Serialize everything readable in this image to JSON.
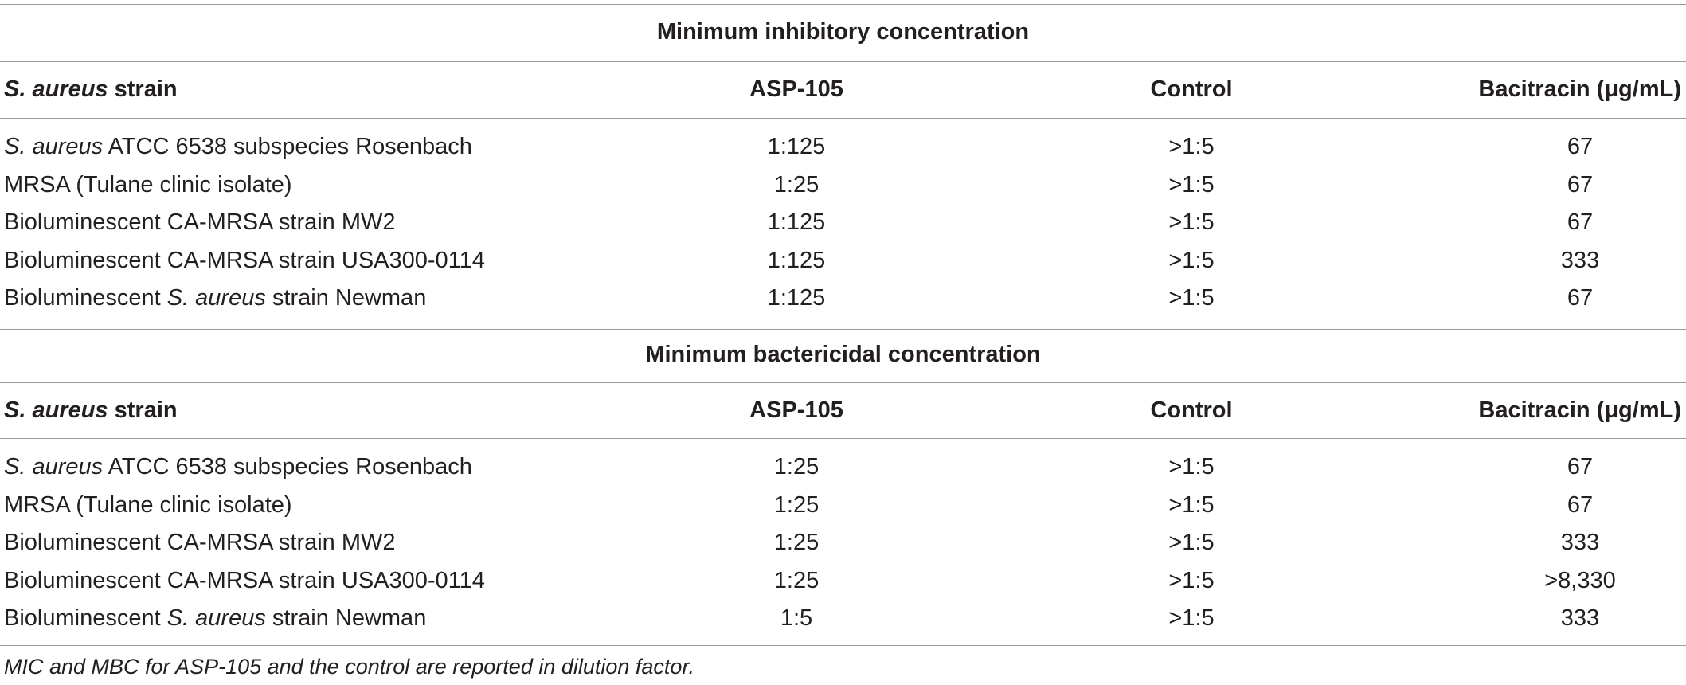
{
  "sections": [
    {
      "title": "Minimum inhibitory concentration",
      "header": {
        "strain_italic": "S. aureus",
        "strain_rest": " strain",
        "asp": "ASP-105",
        "control": "Control",
        "bacitracin": "Bacitracin (μg/mL)"
      },
      "rows": [
        {
          "strain_italic": "S. aureus",
          "strain_rest": " ATCC 6538 subspecies Rosenbach",
          "asp": "1:125",
          "control": ">1:5",
          "bacitracin": "67"
        },
        {
          "strain_italic": "",
          "strain_rest": "MRSA (Tulane clinic isolate)",
          "asp": "1:25",
          "control": ">1:5",
          "bacitracin": "67"
        },
        {
          "strain_italic": "",
          "strain_rest": "Bioluminescent CA-MRSA strain MW2",
          "asp": "1:125",
          "control": ">1:5",
          "bacitracin": "67"
        },
        {
          "strain_italic": "",
          "strain_rest": "Bioluminescent CA-MRSA strain USA300-0114",
          "asp": "1:125",
          "control": ">1:5",
          "bacitracin": "333"
        },
        {
          "strain_pre": "Bioluminescent ",
          "strain_italic": "S. aureus",
          "strain_rest": " strain Newman",
          "asp": "1:125",
          "control": ">1:5",
          "bacitracin": "67"
        }
      ]
    },
    {
      "title": "Minimum bactericidal concentration",
      "header": {
        "strain_italic": "S. aureus",
        "strain_rest": " strain",
        "asp": "ASP-105",
        "control": "Control",
        "bacitracin": "Bacitracin (μg/mL)"
      },
      "rows": [
        {
          "strain_italic": "S. aureus",
          "strain_rest": " ATCC 6538 subspecies Rosenbach",
          "asp": "1:25",
          "control": ">1:5",
          "bacitracin": "67"
        },
        {
          "strain_italic": "",
          "strain_rest": "MRSA (Tulane clinic isolate)",
          "asp": "1:25",
          "control": ">1:5",
          "bacitracin": "67"
        },
        {
          "strain_italic": "",
          "strain_rest": "Bioluminescent CA-MRSA strain MW2",
          "asp": "1:25",
          "control": ">1:5",
          "bacitracin": "333"
        },
        {
          "strain_italic": "",
          "strain_rest": "Bioluminescent CA-MRSA strain USA300-0114",
          "asp": "1:25",
          "control": ">1:5",
          "bacitracin": ">8,330"
        },
        {
          "strain_pre": "Bioluminescent ",
          "strain_italic": "S. aureus",
          "strain_rest": " strain Newman",
          "asp": "1:5",
          "control": ">1:5",
          "bacitracin": "333"
        }
      ]
    }
  ],
  "footnote": "MIC and MBC for ASP-105 and the control are reported in dilution factor."
}
